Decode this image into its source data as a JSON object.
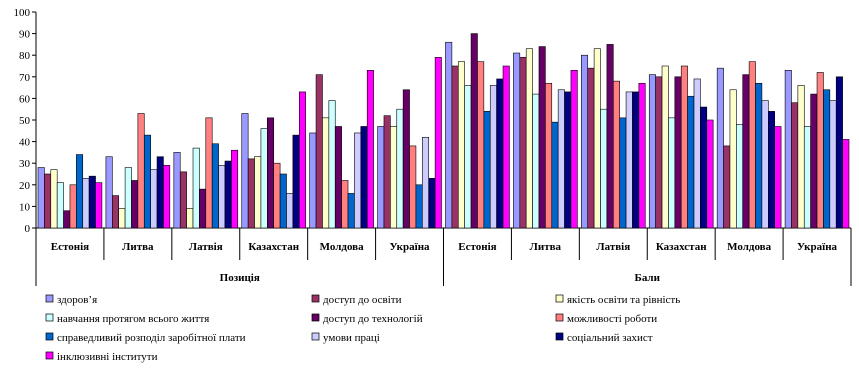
{
  "chart_data": {
    "type": "bar",
    "ylim": [
      0,
      100
    ],
    "yticks": [
      0,
      10,
      20,
      30,
      40,
      50,
      60,
      70,
      80,
      90,
      100
    ],
    "grid": false,
    "legend_position": "bottom",
    "groups": [
      {
        "label": "Позиція",
        "categories": [
          "Естонія",
          "Литва",
          "Латвія",
          "Казахстан",
          "Молдова",
          "Україна"
        ]
      },
      {
        "label": "Бали",
        "categories": [
          "Естонія",
          "Литва",
          "Латвія",
          "Казахстан",
          "Молдова",
          "Україна"
        ]
      }
    ],
    "series": [
      {
        "name": "здоров’я",
        "color": "#9999FF",
        "values": [
          28,
          33,
          35,
          53,
          44,
          47,
          86,
          81,
          80,
          71,
          74,
          73
        ]
      },
      {
        "name": "доступ до освіти",
        "color": "#993366",
        "values": [
          25,
          15,
          26,
          32,
          71,
          52,
          75,
          79,
          74,
          70,
          38,
          58
        ]
      },
      {
        "name": "якість освіти та рівність",
        "color": "#FFFFCC",
        "values": [
          27,
          9,
          9,
          33,
          51,
          47,
          77,
          83,
          83,
          75,
          64,
          66
        ]
      },
      {
        "name": "навчання протягом всього життя",
        "color": "#CCFFFF",
        "values": [
          21,
          28,
          37,
          46,
          59,
          55,
          66,
          62,
          55,
          51,
          48,
          47
        ]
      },
      {
        "name": "доступ до технологій",
        "color": "#660066",
        "values": [
          8,
          22,
          18,
          51,
          47,
          64,
          90,
          84,
          85,
          70,
          71,
          62
        ]
      },
      {
        "name": "можливості роботи",
        "color": "#FF8080",
        "values": [
          20,
          53,
          51,
          30,
          22,
          38,
          77,
          67,
          68,
          75,
          77,
          72
        ]
      },
      {
        "name": "справедливий розподіл заробітної плати",
        "color": "#0066CC",
        "values": [
          34,
          43,
          39,
          25,
          16,
          20,
          54,
          49,
          51,
          61,
          67,
          64
        ]
      },
      {
        "name": "умови праці",
        "color": "#CCCCFF",
        "values": [
          23,
          27,
          29,
          16,
          44,
          42,
          66,
          64,
          63,
          69,
          59,
          59
        ]
      },
      {
        "name": "соціальний захист",
        "color": "#000080",
        "values": [
          24,
          33,
          31,
          43,
          47,
          23,
          69,
          63,
          63,
          56,
          54,
          70
        ]
      },
      {
        "name": "інклюзивні інститути",
        "color": "#FF00FF",
        "values": [
          21,
          29,
          36,
          63,
          73,
          79,
          75,
          73,
          67,
          50,
          47,
          41
        ]
      }
    ]
  }
}
